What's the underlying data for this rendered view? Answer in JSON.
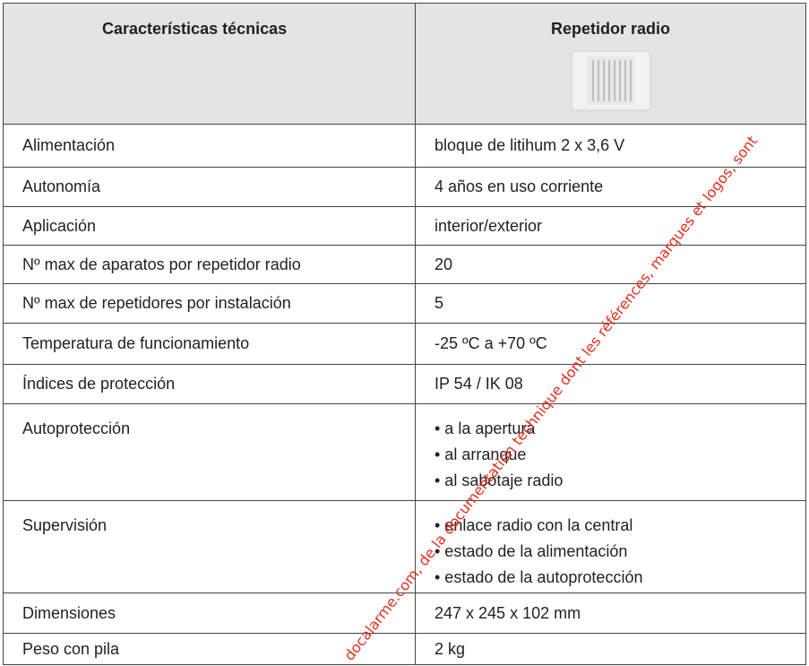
{
  "header": {
    "columns": [
      "Características técnicas",
      "Repetidor radio"
    ]
  },
  "table": {
    "rows": [
      [
        "Alimentación",
        [
          "bloque de litihum 2 x 3,6 V"
        ]
      ],
      [
        "Autonomía",
        [
          "4 años en uso corriente"
        ]
      ],
      [
        "Aplicación",
        [
          "interior/exterior"
        ]
      ],
      [
        "Nº max de aparatos por repetidor radio",
        [
          "20"
        ]
      ],
      [
        "Nº max de repetidores por instalación",
        [
          "5"
        ]
      ],
      [
        "Temperatura de funcionamiento",
        [
          "-25 ºC a +70 ºC"
        ]
      ],
      [
        "Índices de protección",
        [
          "IP 54 / IK 08"
        ]
      ],
      [
        "Autoprotección",
        [
          "• a la apertura",
          "• al arranque",
          "• al sabotaje radio"
        ]
      ],
      [
        "Supervisión",
        [
          "• enlace radio con la central",
          "• estado de la alimentación",
          "• estado de la autoprotección"
        ]
      ],
      [
        "Dimensiones",
        [
          "247 x 245 x 102 mm"
        ]
      ],
      [
        "Peso con pila",
        [
          "2 kg"
        ]
      ]
    ]
  },
  "watermark": "docalarme.com, de la documentation technique dont les références, marques et logos, sont"
}
